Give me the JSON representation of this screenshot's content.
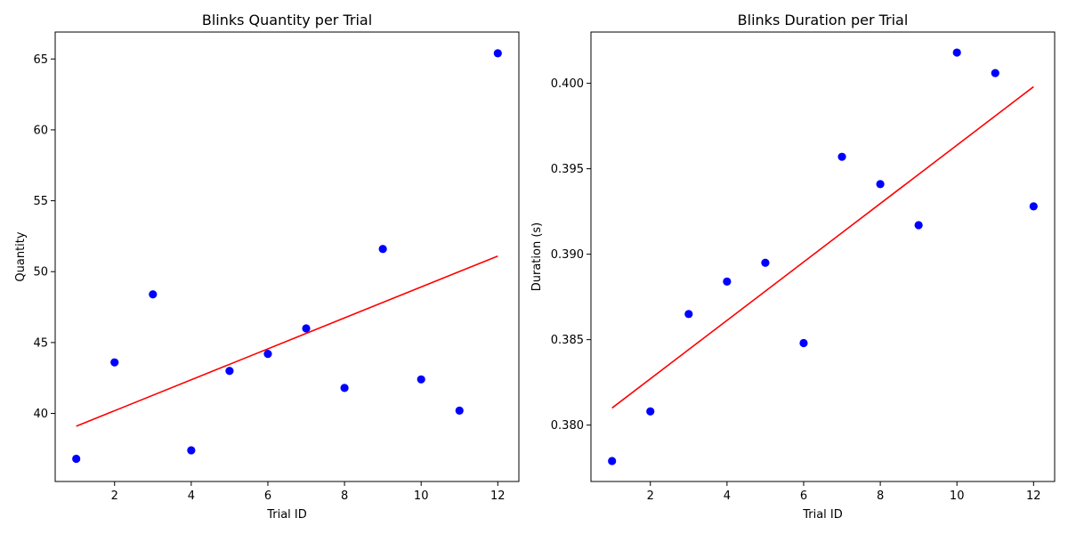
{
  "chart_data": [
    {
      "type": "scatter",
      "title": "Blinks Quantity per Trial",
      "xlabel": "Trial ID",
      "ylabel": "Quantity",
      "xlim": [
        0.45,
        12.55
      ],
      "ylim": [
        35.2,
        66.9
      ],
      "xticks": [
        2,
        4,
        6,
        8,
        10,
        12
      ],
      "xtick_labels": [
        "2",
        "4",
        "6",
        "8",
        "10",
        "12"
      ],
      "yticks": [
        40,
        45,
        50,
        55,
        60,
        65
      ],
      "ytick_labels": [
        "40",
        "45",
        "50",
        "55",
        "60",
        "65"
      ],
      "grid": false,
      "legend": "none",
      "series": [
        {
          "kind": "points",
          "color": "#0000ff",
          "x": [
            1,
            2,
            3,
            4,
            5,
            6,
            7,
            8,
            9,
            10,
            11,
            12
          ],
          "y": [
            36.8,
            43.6,
            48.4,
            37.4,
            43.0,
            44.2,
            46.0,
            41.8,
            51.6,
            42.4,
            40.2,
            65.4
          ]
        },
        {
          "kind": "trend-line",
          "color": "#ff0000",
          "x": [
            1,
            12
          ],
          "y": [
            39.1,
            51.1
          ]
        }
      ]
    },
    {
      "type": "scatter",
      "title": "Blinks Duration per Trial",
      "xlabel": "Trial ID",
      "ylabel": "Duration (s)",
      "xlim": [
        0.45,
        12.55
      ],
      "ylim": [
        0.3767,
        0.403
      ],
      "xticks": [
        2,
        4,
        6,
        8,
        10,
        12
      ],
      "xtick_labels": [
        "2",
        "4",
        "6",
        "8",
        "10",
        "12"
      ],
      "yticks": [
        0.38,
        0.385,
        0.39,
        0.395,
        0.4
      ],
      "ytick_labels": [
        "0.380",
        "0.385",
        "0.390",
        "0.395",
        "0.400"
      ],
      "grid": false,
      "legend": "none",
      "series": [
        {
          "kind": "points",
          "color": "#0000ff",
          "x": [
            1,
            2,
            3,
            4,
            5,
            6,
            7,
            8,
            9,
            10,
            11,
            12
          ],
          "y": [
            0.3779,
            0.3808,
            0.3865,
            0.3884,
            0.3895,
            0.3848,
            0.3957,
            0.3941,
            0.3917,
            0.4018,
            0.4006,
            0.3928
          ]
        },
        {
          "kind": "trend-line",
          "color": "#ff0000",
          "x": [
            1,
            12
          ],
          "y": [
            0.381,
            0.3998
          ]
        }
      ]
    }
  ]
}
